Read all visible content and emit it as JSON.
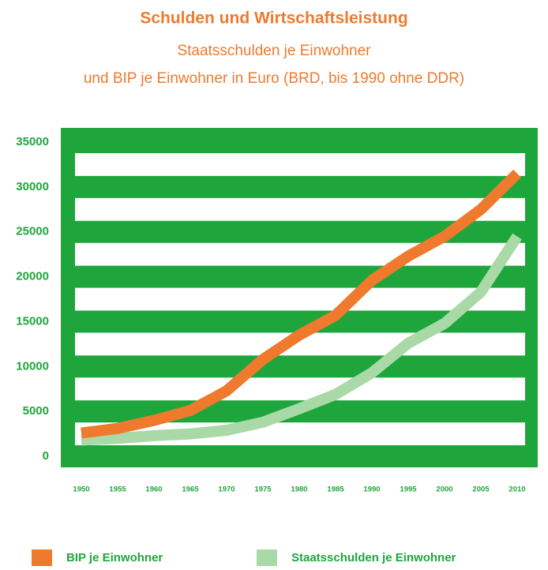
{
  "chart_data": {
    "type": "line",
    "title": "Schulden und Wirtschaftsleistung",
    "subtitle": [
      "Staatsschulden je Einwohner",
      "und BIP je Einwohner in Euro (BRD, bis 1990 ohne DDR)"
    ],
    "x": [
      1950,
      1955,
      1960,
      1965,
      1970,
      1975,
      1980,
      1985,
      1990,
      1995,
      2000,
      2005,
      2010
    ],
    "series": [
      {
        "name": "BIP je Einwohner",
        "color": "#ef7a2e",
        "values": [
          2600,
          3100,
          4000,
          5100,
          7300,
          10800,
          13500,
          15700,
          19600,
          22300,
          24500,
          27500,
          31500
        ]
      },
      {
        "name": "Staatsschulden je Einwohner",
        "color": "#a9d9a6",
        "values": [
          1800,
          2000,
          2300,
          2500,
          2900,
          3800,
          5300,
          6900,
          9300,
          12600,
          14800,
          18300,
          24500
        ]
      }
    ],
    "xlim": [
      1947.5,
      2012.5
    ],
    "xticks": [
      1950,
      1955,
      1960,
      1965,
      1970,
      1975,
      1980,
      1985,
      1990,
      1995,
      2000,
      2005,
      2010
    ],
    "ylim": [
      0,
      35000
    ],
    "yticks": [
      0,
      5000,
      10000,
      15000,
      20000,
      25000,
      30000,
      35000
    ],
    "grid": true,
    "grid_color": "#1ea63c",
    "label_color": "#1ea63c",
    "title_color": "#ef7a2e",
    "legend": "bottom"
  }
}
